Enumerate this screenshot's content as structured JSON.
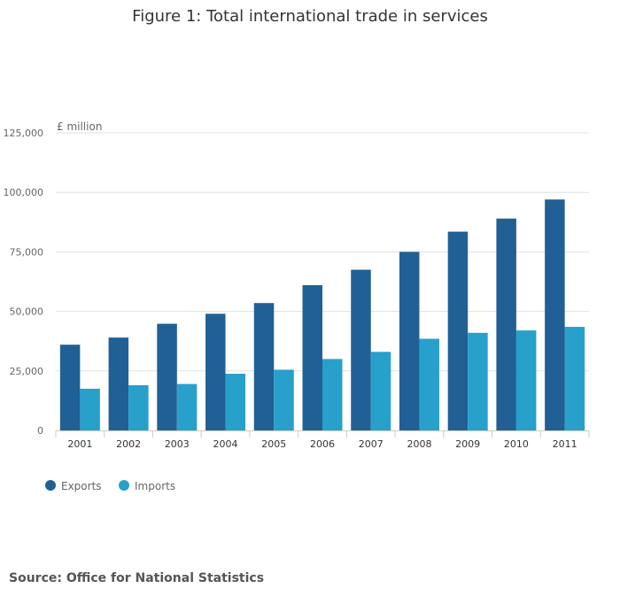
{
  "chart_data": {
    "type": "bar",
    "title": "Figure 1: Total international trade in services",
    "ylabel": "£ million",
    "xlabel": "",
    "categories": [
      "2001",
      "2002",
      "2003",
      "2004",
      "2005",
      "2006",
      "2007",
      "2008",
      "2009",
      "2010",
      "2011"
    ],
    "series": [
      {
        "name": "Exports",
        "color": "#206095",
        "values": [
          36000,
          39000,
          44800,
          49000,
          53500,
          61000,
          67500,
          75000,
          83500,
          89000,
          97000
        ]
      },
      {
        "name": "Imports",
        "color": "#27a0cc",
        "values": [
          17500,
          19000,
          19500,
          23800,
          25500,
          30000,
          33000,
          38500,
          41000,
          42000,
          43500
        ]
      }
    ],
    "ylim": [
      0,
      125000
    ],
    "yticks": [
      0,
      25000,
      50000,
      75000,
      100000,
      125000
    ],
    "ytick_labels": [
      "0",
      "25,000",
      "50,000",
      "75,000",
      "100,000",
      "125,000"
    ],
    "grid": true,
    "legend_position": "bottom-left"
  },
  "source": "Source: Office for National Statistics"
}
